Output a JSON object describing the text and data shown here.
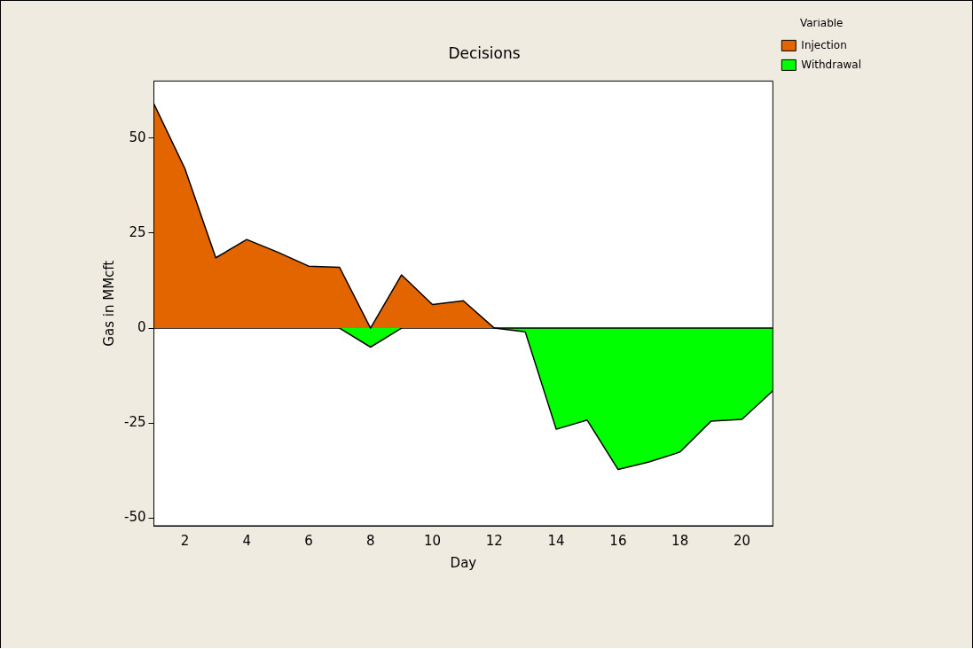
{
  "chart_data": {
    "type": "area",
    "title": "Decisions",
    "xlabel": "Day",
    "ylabel": "Gas in MMcft",
    "legend_title": "Variable",
    "legend": "top right",
    "x": [
      1,
      2,
      3,
      4,
      5,
      6,
      7,
      8,
      9,
      10,
      11,
      12,
      13,
      14,
      15,
      16,
      17,
      18,
      19,
      20,
      21
    ],
    "series": [
      {
        "name": "Injection",
        "color": "#e36500",
        "values": [
          59,
          42,
          18.5,
          23.3,
          20,
          16.3,
          16,
          0,
          14,
          6.2,
          7.2,
          0,
          0,
          0,
          0,
          0,
          0,
          0,
          0,
          0,
          0
        ]
      },
      {
        "name": "Withdrawal",
        "color": "#00ff00",
        "values": [
          0,
          0,
          0,
          0,
          0,
          0,
          0,
          -5,
          0,
          0,
          0,
          0,
          -1,
          -26.6,
          -24.2,
          -37.2,
          -35.2,
          -32.6,
          -24.5,
          -24,
          -16.5
        ]
      }
    ],
    "xlim": [
      1,
      21
    ],
    "xticks": [
      2,
      4,
      6,
      8,
      10,
      12,
      14,
      16,
      18,
      20
    ],
    "ylim": [
      -52,
      65
    ],
    "yticks": [
      -50,
      -25,
      0,
      25,
      50
    ],
    "grid": false
  }
}
